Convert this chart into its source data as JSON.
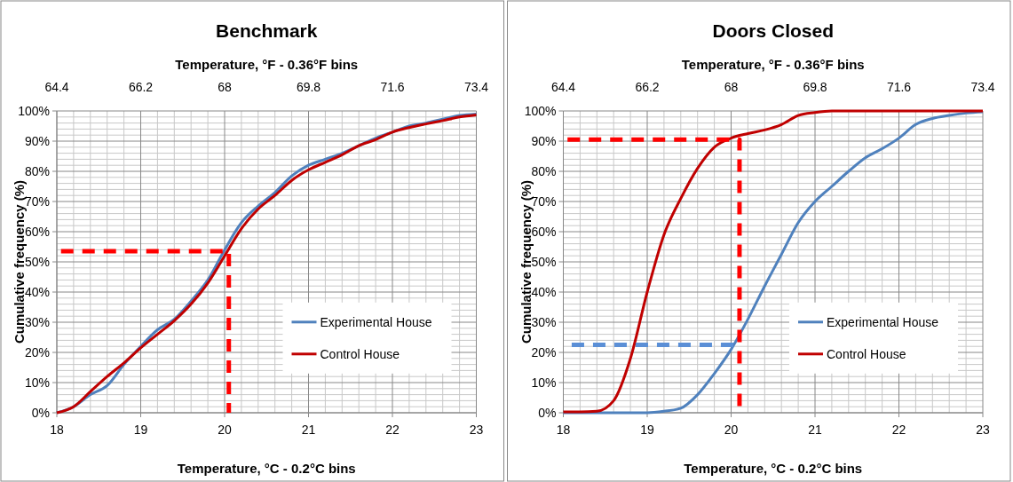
{
  "chart_data": [
    {
      "type": "line",
      "title": "Benchmark",
      "xlabel": "Temperature, °C - 0.2°C bins",
      "x2label": "Temperature, °F - 0.36°F bins",
      "ylabel": "Cumulative frequency (%)",
      "x": [
        18,
        18.2,
        18.4,
        18.6,
        18.8,
        19,
        19.2,
        19.4,
        19.6,
        19.8,
        20,
        20.2,
        20.4,
        20.6,
        20.8,
        21,
        21.2,
        21.4,
        21.6,
        21.8,
        22,
        22.2,
        22.4,
        22.6,
        22.8,
        23
      ],
      "series": [
        {
          "name": "Experimental House",
          "color": "#4f81bd",
          "values": [
            0,
            2,
            6,
            9,
            16,
            22,
            27.5,
            31,
            37,
            44,
            54,
            63,
            68.5,
            73,
            78.5,
            82,
            84,
            86,
            88.5,
            91,
            93,
            95,
            96,
            97.3,
            98.5,
            99
          ]
        },
        {
          "name": "Control House",
          "color": "#c00000",
          "values": [
            0,
            2,
            7,
            12,
            16.5,
            21.5,
            26,
            30.5,
            36,
            43,
            52,
            61,
            67.5,
            72,
            77,
            80.5,
            83,
            85.5,
            88.5,
            90.5,
            93,
            94.5,
            95.7,
            96.8,
            98,
            98.7
          ]
        },
        {
          "color": "#ff0000",
          "line_style": "dashed",
          "x": [
            18.05,
            20.05,
            20.05
          ],
          "values": [
            53.5,
            53.5,
            0
          ]
        }
      ],
      "xlim": [
        18,
        23
      ],
      "xticks": [
        18,
        19,
        20,
        21,
        22,
        23
      ],
      "x2lim": [
        64.4,
        73.4
      ],
      "x2ticks": [
        64.4,
        66.2,
        68,
        69.8,
        71.6,
        73.4
      ],
      "ylim": [
        0,
        100
      ],
      "yticks": [
        {
          "value": 0,
          "label": "0%"
        },
        {
          "value": 10,
          "label": "10%"
        },
        {
          "value": 20,
          "label": "20%"
        },
        {
          "value": 30,
          "label": "30%"
        },
        {
          "value": 40,
          "label": "40%"
        },
        {
          "value": 50,
          "label": "50%"
        },
        {
          "value": 60,
          "label": "60%"
        },
        {
          "value": 70,
          "label": "70%"
        },
        {
          "value": 80,
          "label": "80%"
        },
        {
          "value": 90,
          "label": "90%"
        },
        {
          "value": 100,
          "label": "100%"
        }
      ],
      "grid": true,
      "legend": "bottom right",
      "line_style": "solid"
    },
    {
      "type": "line",
      "title": "Doors Closed",
      "xlabel": "Temperature, °C - 0.2°C bins",
      "x2label": "Temperature, °F - 0.36°F bins",
      "ylabel": "Cumulative frequency (%)",
      "x": [
        18,
        18.2,
        18.4,
        18.6,
        18.8,
        19,
        19.2,
        19.4,
        19.6,
        19.8,
        20,
        20.2,
        20.4,
        20.6,
        20.8,
        21,
        21.2,
        21.4,
        21.6,
        21.8,
        22,
        22.2,
        22.4,
        22.6,
        22.8,
        23
      ],
      "series": [
        {
          "name": "Experimental House",
          "color": "#4f81bd",
          "values": [
            0,
            0,
            0,
            0,
            0,
            0,
            0.5,
            1.5,
            6,
            13,
            21,
            31,
            42,
            52.5,
            63,
            70,
            75,
            80,
            84.5,
            87.5,
            91,
            95.5,
            97.5,
            98.5,
            99.3,
            99.7
          ]
        },
        {
          "name": "Control House",
          "color": "#c00000",
          "values": [
            0.3,
            0.3,
            0.5,
            4,
            18,
            40,
            59,
            71,
            81,
            88,
            91,
            92.5,
            93.7,
            95.5,
            98.5,
            99.5,
            100,
            100,
            100,
            100,
            100,
            100,
            100,
            100,
            100,
            100
          ]
        },
        {
          "color": "#ff0000",
          "line_style": "dashed",
          "x": [
            18.05,
            20.1,
            20.1
          ],
          "values": [
            90.5,
            90.5,
            0
          ]
        },
        {
          "color": "#5b8fd6",
          "line_style": "dashed",
          "x": [
            18.1,
            20.1
          ],
          "values": [
            22.5,
            22.5
          ]
        }
      ],
      "xlim": [
        18,
        23
      ],
      "xticks": [
        18,
        19,
        20,
        21,
        22,
        23
      ],
      "x2lim": [
        64.4,
        73.4
      ],
      "x2ticks": [
        64.4,
        66.2,
        68,
        69.8,
        71.6,
        73.4
      ],
      "ylim": [
        0,
        100
      ],
      "yticks": [
        {
          "value": 0,
          "label": "0%"
        },
        {
          "value": 10,
          "label": "10%"
        },
        {
          "value": 20,
          "label": "20%"
        },
        {
          "value": 30,
          "label": "30%"
        },
        {
          "value": 40,
          "label": "40%"
        },
        {
          "value": 50,
          "label": "50%"
        },
        {
          "value": 60,
          "label": "60%"
        },
        {
          "value": 70,
          "label": "70%"
        },
        {
          "value": 80,
          "label": "80%"
        },
        {
          "value": 90,
          "label": "90%"
        },
        {
          "value": 100,
          "label": "100%"
        }
      ],
      "grid": true,
      "legend": "bottom right",
      "line_style": "solid"
    }
  ]
}
